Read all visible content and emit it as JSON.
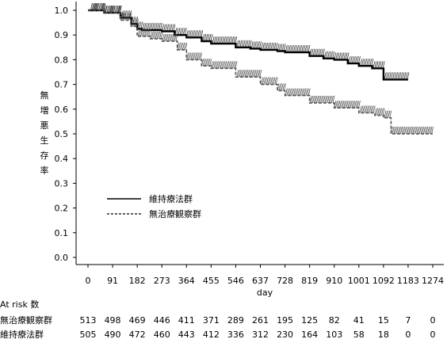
{
  "chart_data": {
    "type": "line",
    "subtype": "kaplan-meier",
    "xlabel": "day",
    "ylabel": "無増悪生存率",
    "xticks": [
      0,
      91,
      182,
      273,
      364,
      455,
      546,
      637,
      728,
      819,
      910,
      1001,
      1092,
      1183,
      1274
    ],
    "yticks": [
      "0.0",
      "0.1",
      "0.2",
      "0.3",
      "0.4",
      "0.5",
      "0.6",
      "0.7",
      "0.8",
      "0.9",
      "1.0"
    ],
    "xlim": [
      0,
      1274
    ],
    "ylim": [
      0,
      1.0
    ],
    "grid": false,
    "legend_placement": "center-left",
    "series": [
      {
        "name": "維持療法群",
        "style": "solid",
        "color": "#000000",
        "x": [
          0,
          60,
          120,
          160,
          182,
          200,
          273,
          320,
          364,
          420,
          455,
          546,
          600,
          637,
          700,
          728,
          819,
          870,
          910,
          960,
          1001,
          1050,
          1092,
          1183
        ],
        "y": [
          1.0,
          0.99,
          0.97,
          0.945,
          0.925,
          0.92,
          0.915,
          0.9,
          0.89,
          0.875,
          0.865,
          0.85,
          0.845,
          0.84,
          0.835,
          0.83,
          0.815,
          0.805,
          0.8,
          0.785,
          0.775,
          0.765,
          0.72,
          0.72
        ]
      },
      {
        "name": "無治療観察群",
        "style": "dashed",
        "color": "#555555",
        "x": [
          0,
          60,
          120,
          160,
          182,
          230,
          273,
          330,
          364,
          420,
          455,
          546,
          637,
          700,
          728,
          819,
          910,
          1001,
          1060,
          1092,
          1120,
          1183,
          1274
        ],
        "y": [
          1.0,
          0.99,
          0.96,
          0.935,
          0.895,
          0.885,
          0.875,
          0.84,
          0.8,
          0.775,
          0.765,
          0.73,
          0.7,
          0.675,
          0.655,
          0.625,
          0.605,
          0.585,
          0.575,
          0.565,
          0.5,
          0.5,
          0.5
        ]
      }
    ],
    "at_risk": {
      "title": "At risk 数",
      "rows": [
        {
          "name": "無治療観察群",
          "values": [
            513,
            498,
            469,
            446,
            411,
            371,
            289,
            261,
            195,
            125,
            82,
            41,
            15,
            7,
            0
          ]
        },
        {
          "name": "維持療法群",
          "values": [
            505,
            490,
            472,
            460,
            443,
            412,
            336,
            312,
            230,
            164,
            103,
            58,
            18,
            0,
            0
          ]
        }
      ]
    }
  }
}
